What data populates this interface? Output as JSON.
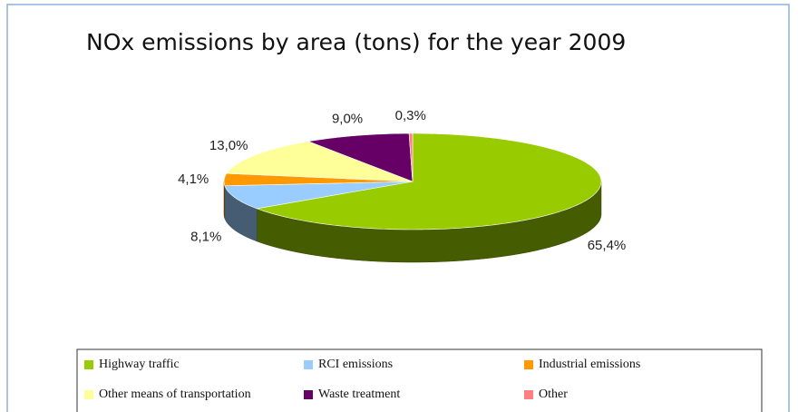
{
  "chart_data": {
    "type": "pie",
    "title": "NOx emissions by area (tons) for the year 2009",
    "categories": [
      "Highway traffic",
      "RCI emissions",
      "Industrial emissions",
      "Other means of transportation",
      "Waste treatment",
      "Other"
    ],
    "values": [
      65.4,
      8.1,
      4.1,
      13.0,
      9.0,
      0.3
    ],
    "value_labels": [
      "65,4%",
      "8,1%",
      "4,1%",
      "13,0%",
      "9,0%",
      "0,3%"
    ],
    "colors": [
      "#99cc00",
      "#99ccff",
      "#ff9900",
      "#ffff99",
      "#660066",
      "#ff8080"
    ],
    "legend": "bottom"
  }
}
